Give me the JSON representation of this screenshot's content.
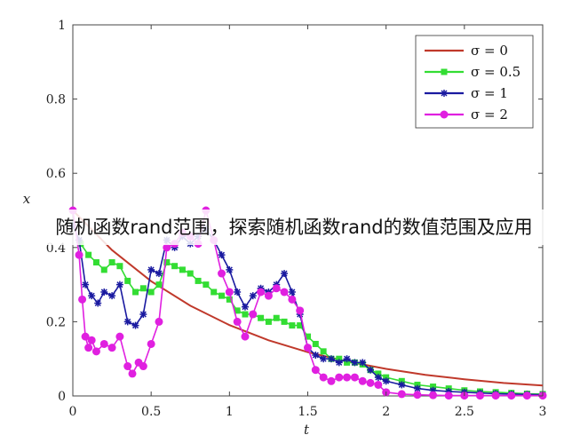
{
  "overlay_caption": "随机函数rand范围，探索随机函数rand的数值范围及应用",
  "chart_data": {
    "type": "line",
    "xlabel": "t",
    "ylabel": "x",
    "xlim": [
      0,
      3
    ],
    "ylim": [
      0,
      1
    ],
    "xticks": [
      0,
      0.5,
      1,
      1.5,
      2,
      2.5,
      3
    ],
    "xtick_labels": [
      "0",
      "0.5",
      "1",
      "1.5",
      "2",
      "2.5",
      "3"
    ],
    "yticks": [
      0,
      0.2,
      0.4,
      0.6,
      0.8,
      1
    ],
    "ytick_labels": [
      "0",
      "0.2",
      "0.4",
      "0.6",
      "0.8",
      "1"
    ],
    "grid": false,
    "legend_position": "top-right",
    "series": [
      {
        "name": "σ = 0",
        "color": "#c0392b",
        "marker": "none",
        "x": [
          0,
          0.25,
          0.5,
          0.75,
          1.0,
          1.25,
          1.5,
          1.75,
          2.0,
          2.25,
          2.5,
          2.75,
          3.0
        ],
        "y": [
          0.5,
          0.393,
          0.309,
          0.243,
          0.191,
          0.15,
          0.118,
          0.093,
          0.073,
          0.057,
          0.045,
          0.035,
          0.028
        ]
      },
      {
        "name": "σ = 0.5",
        "color": "#33dd33",
        "marker": "square",
        "x": [
          0,
          0.05,
          0.1,
          0.15,
          0.2,
          0.25,
          0.3,
          0.35,
          0.4,
          0.45,
          0.5,
          0.55,
          0.6,
          0.65,
          0.7,
          0.75,
          0.8,
          0.85,
          0.9,
          0.95,
          1.0,
          1.05,
          1.1,
          1.15,
          1.2,
          1.25,
          1.3,
          1.35,
          1.4,
          1.45,
          1.5,
          1.55,
          1.6,
          1.65,
          1.7,
          1.75,
          1.8,
          1.85,
          1.9,
          1.95,
          2.0,
          2.1,
          2.2,
          2.3,
          2.4,
          2.5,
          2.6,
          2.7,
          2.8,
          2.9,
          3.0
        ],
        "y": [
          0.46,
          0.41,
          0.38,
          0.36,
          0.34,
          0.36,
          0.35,
          0.31,
          0.28,
          0.29,
          0.28,
          0.3,
          0.36,
          0.35,
          0.34,
          0.33,
          0.31,
          0.3,
          0.28,
          0.27,
          0.26,
          0.23,
          0.22,
          0.22,
          0.21,
          0.2,
          0.21,
          0.2,
          0.19,
          0.19,
          0.16,
          0.14,
          0.12,
          0.1,
          0.1,
          0.09,
          0.09,
          0.085,
          0.07,
          0.06,
          0.05,
          0.04,
          0.03,
          0.025,
          0.02,
          0.015,
          0.012,
          0.01,
          0.008,
          0.006,
          0.005
        ]
      },
      {
        "name": "σ = 1",
        "color": "#1a1aa0",
        "marker": "star",
        "x": [
          0,
          0.04,
          0.08,
          0.12,
          0.16,
          0.2,
          0.25,
          0.3,
          0.35,
          0.4,
          0.45,
          0.5,
          0.55,
          0.6,
          0.65,
          0.7,
          0.75,
          0.8,
          0.85,
          0.9,
          0.95,
          1.0,
          1.05,
          1.1,
          1.15,
          1.2,
          1.25,
          1.3,
          1.35,
          1.4,
          1.45,
          1.5,
          1.55,
          1.6,
          1.65,
          1.7,
          1.75,
          1.8,
          1.85,
          1.9,
          1.95,
          2.0,
          2.1,
          2.2,
          2.3,
          2.4,
          2.5,
          2.6,
          2.7,
          2.8,
          2.9,
          3.0
        ],
        "y": [
          0.46,
          0.42,
          0.3,
          0.27,
          0.25,
          0.28,
          0.27,
          0.3,
          0.2,
          0.19,
          0.22,
          0.34,
          0.33,
          0.42,
          0.4,
          0.43,
          0.41,
          0.43,
          0.45,
          0.42,
          0.38,
          0.34,
          0.28,
          0.24,
          0.27,
          0.29,
          0.28,
          0.3,
          0.33,
          0.28,
          0.22,
          0.13,
          0.11,
          0.1,
          0.1,
          0.09,
          0.1,
          0.09,
          0.09,
          0.07,
          0.05,
          0.04,
          0.03,
          0.02,
          0.015,
          0.012,
          0.01,
          0.008,
          0.006,
          0.005,
          0.004,
          0.003
        ]
      },
      {
        "name": "σ = 2",
        "color": "#e020e0",
        "marker": "circle",
        "x": [
          0,
          0.04,
          0.06,
          0.08,
          0.1,
          0.12,
          0.15,
          0.2,
          0.25,
          0.3,
          0.35,
          0.38,
          0.42,
          0.45,
          0.5,
          0.55,
          0.6,
          0.65,
          0.7,
          0.75,
          0.8,
          0.85,
          0.9,
          0.95,
          1.0,
          1.05,
          1.1,
          1.15,
          1.2,
          1.25,
          1.3,
          1.35,
          1.4,
          1.45,
          1.5,
          1.55,
          1.6,
          1.65,
          1.7,
          1.75,
          1.8,
          1.85,
          1.9,
          1.95,
          2.0,
          2.1,
          2.2,
          2.3,
          2.4,
          2.5,
          2.6,
          2.7,
          2.8,
          2.9,
          3.0
        ],
        "y": [
          0.5,
          0.38,
          0.26,
          0.16,
          0.13,
          0.15,
          0.12,
          0.14,
          0.13,
          0.16,
          0.08,
          0.06,
          0.09,
          0.08,
          0.14,
          0.2,
          0.4,
          0.41,
          0.44,
          0.43,
          0.41,
          0.5,
          0.42,
          0.33,
          0.28,
          0.2,
          0.16,
          0.22,
          0.28,
          0.27,
          0.29,
          0.28,
          0.26,
          0.23,
          0.13,
          0.07,
          0.05,
          0.04,
          0.05,
          0.05,
          0.05,
          0.04,
          0.035,
          0.03,
          0.01,
          0.005,
          0.003,
          0.002,
          0.001,
          0.001,
          0.001,
          0.001,
          0.001,
          0.001,
          0.001
        ]
      }
    ]
  }
}
